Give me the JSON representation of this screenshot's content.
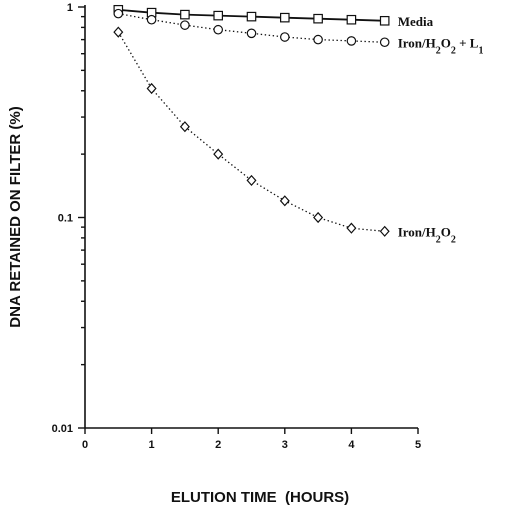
{
  "chart_data": {
    "type": "line",
    "xlabel": "ELUTION TIME  (HOURS)",
    "ylabel": "DNA RETAINED ON FILTER (%)",
    "xlim": [
      0,
      5
    ],
    "ylim": [
      0.01,
      1
    ],
    "y_scale": "log",
    "x_ticks": [
      "0",
      "1",
      "2",
      "3",
      "4",
      "5"
    ],
    "y_ticks": [
      "1",
      "0.1",
      "0.01"
    ],
    "grid": false,
    "legend": "none; series labelled at right end of each line",
    "series": [
      {
        "name": "Media",
        "marker": "square",
        "line": "solid",
        "x": [
          0.5,
          1.0,
          1.5,
          2.0,
          2.5,
          3.0,
          3.5,
          4.0,
          4.5
        ],
        "values": [
          0.97,
          0.94,
          0.92,
          0.91,
          0.9,
          0.89,
          0.88,
          0.87,
          0.86
        ]
      },
      {
        "name": "Iron/H2O2 + L1",
        "marker": "circle",
        "line": "dotted",
        "x": [
          0.5,
          1.0,
          1.5,
          2.0,
          2.5,
          3.0,
          3.5,
          4.0,
          4.5
        ],
        "values": [
          0.93,
          0.87,
          0.82,
          0.78,
          0.75,
          0.72,
          0.7,
          0.69,
          0.68
        ]
      },
      {
        "name": "Iron/H2O2",
        "marker": "diamond",
        "line": "dotted",
        "x": [
          0.5,
          1.0,
          1.5,
          2.0,
          2.5,
          3.0,
          3.5,
          4.0,
          4.5
        ],
        "values": [
          0.76,
          0.41,
          0.27,
          0.2,
          0.15,
          0.12,
          0.1,
          0.089,
          0.086
        ]
      }
    ]
  }
}
